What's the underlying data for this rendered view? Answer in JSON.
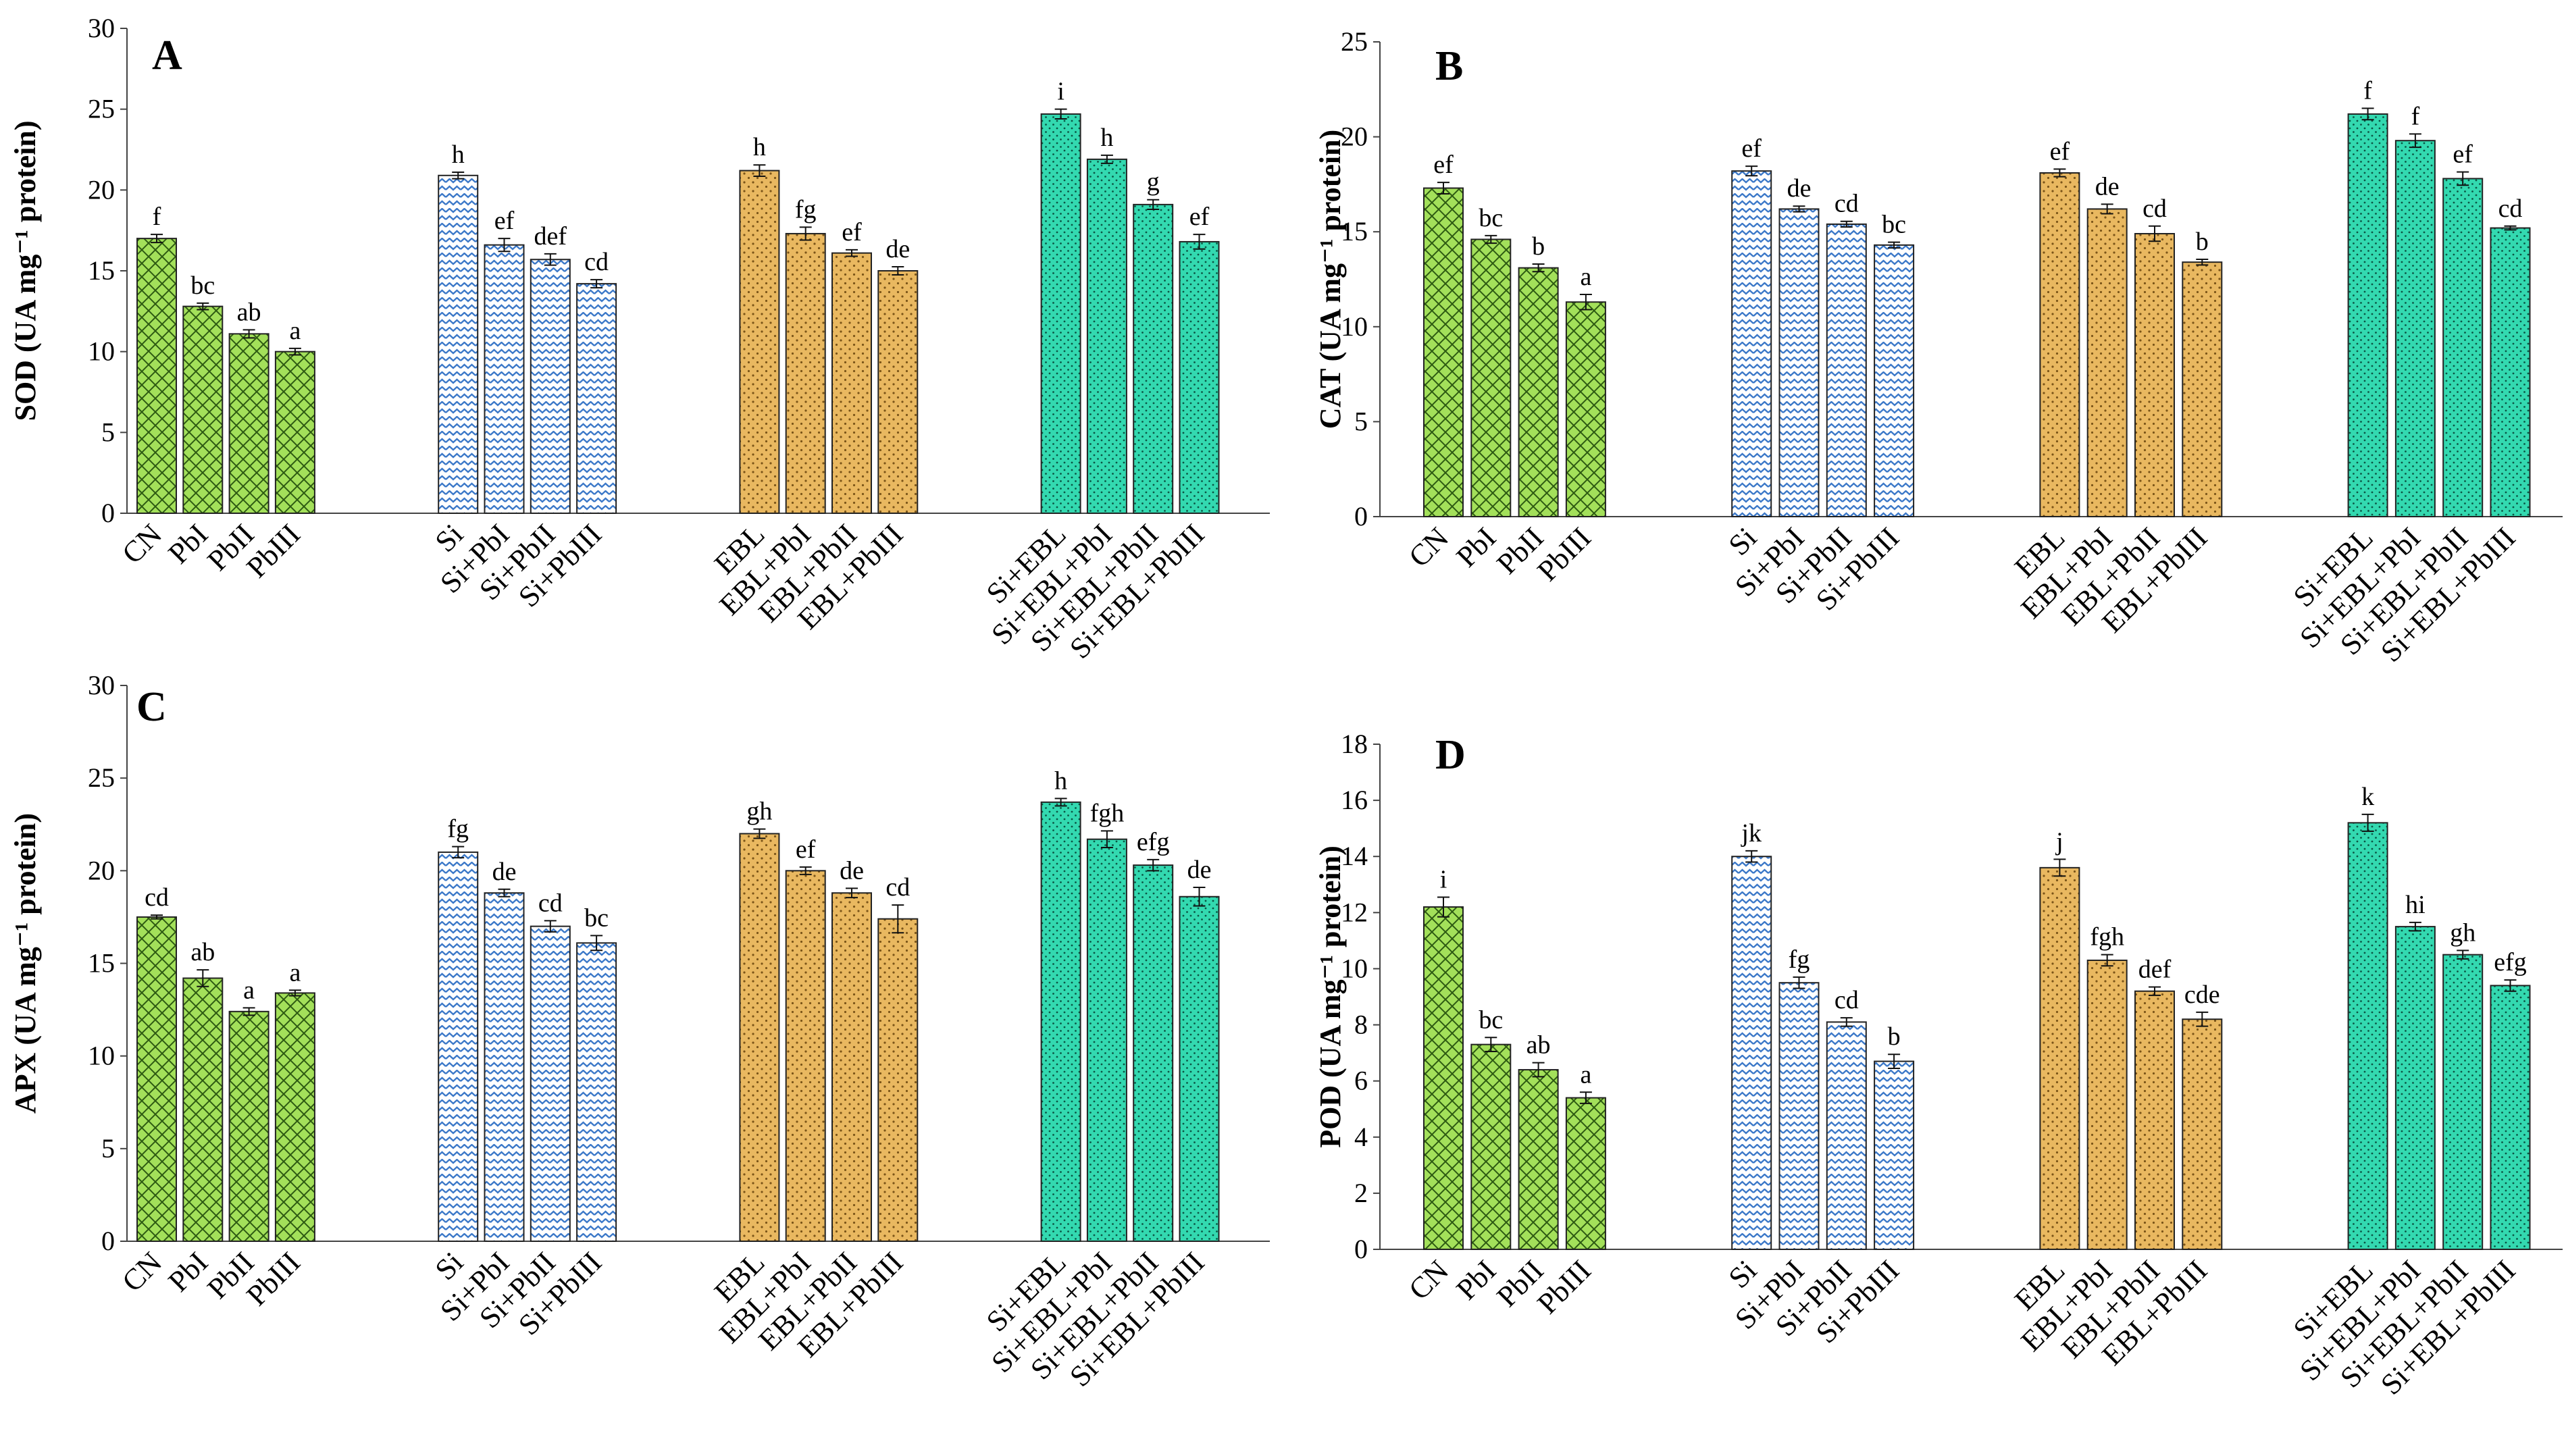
{
  "groups": [
    {
      "name": "control",
      "color": "#a3e05a",
      "pattern": "crosshatch"
    },
    {
      "name": "si",
      "color": "#7aa8de",
      "pattern": "zigzag"
    },
    {
      "name": "ebl",
      "color": "#e9b860",
      "pattern": "dots"
    },
    {
      "name": "si-ebl",
      "color": "#33d9b0",
      "pattern": "dense-dots"
    }
  ],
  "chart_data": [
    {
      "type": "bar",
      "panel": "A",
      "ylabel": "SOD (UA mg⁻¹ protein)",
      "ylim": [
        0,
        30
      ],
      "yticks": [
        "0",
        "5",
        "10",
        "15",
        "20",
        "25",
        "30"
      ],
      "categories": [
        "CN",
        "PbI",
        "PbII",
        "PbIII",
        "Si",
        "Si+PbI",
        "Si+PbII",
        "Si+PbIII",
        "EBL",
        "EBL+PbI",
        "EBL+PbII",
        "EBL+PbIII",
        "Si+EBL",
        "Si+EBL+PbI",
        "Si+EBL+PbII",
        "Si+EBL+PbIII"
      ],
      "values": [
        17.0,
        12.8,
        11.1,
        10.0,
        20.9,
        16.6,
        15.7,
        14.2,
        21.2,
        17.3,
        16.1,
        15.0,
        24.7,
        21.9,
        19.1,
        16.8
      ],
      "errors": [
        0.25,
        0.2,
        0.25,
        0.2,
        0.2,
        0.4,
        0.35,
        0.25,
        0.35,
        0.4,
        0.2,
        0.25,
        0.3,
        0.25,
        0.3,
        0.45
      ],
      "significance": [
        "f",
        "bc",
        "ab",
        "a",
        "h",
        "ef",
        "def",
        "cd",
        "h",
        "fg",
        "ef",
        "de",
        "i",
        "h",
        "g",
        "ef"
      ]
    },
    {
      "type": "bar",
      "panel": "B",
      "ylabel": "CAT (UA mg⁻¹ protein)",
      "ylim": [
        0,
        25
      ],
      "yticks": [
        "0",
        "5",
        "10",
        "15",
        "20",
        "25"
      ],
      "categories": [
        "CN",
        "PbI",
        "PbII",
        "PbIII",
        "Si",
        "Si+PbI",
        "Si+PbII",
        "Si+PbIII",
        "EBL",
        "EBL+PbI",
        "EBL+PbII",
        "EBL+PbIII",
        "Si+EBL",
        "Si+EBL+PbI",
        "Si+EBL+PbII",
        "Si+EBL+PbIII"
      ],
      "values": [
        17.3,
        14.6,
        13.1,
        11.3,
        18.2,
        16.2,
        15.4,
        14.3,
        18.1,
        16.2,
        14.9,
        13.4,
        21.2,
        19.8,
        17.8,
        15.2
      ],
      "errors": [
        0.3,
        0.2,
        0.2,
        0.4,
        0.25,
        0.15,
        0.15,
        0.15,
        0.2,
        0.25,
        0.4,
        0.15,
        0.3,
        0.35,
        0.35,
        0.1
      ],
      "significance": [
        "ef",
        "bc",
        "b",
        "a",
        "ef",
        "de",
        "cd",
        "bc",
        "ef",
        "de",
        "cd",
        "b",
        "f",
        "f",
        "ef",
        "cd"
      ]
    },
    {
      "type": "bar",
      "panel": "C",
      "ylabel": "APX (UA mg⁻¹ protein)",
      "ylim": [
        0,
        30
      ],
      "yticks": [
        "0",
        "5",
        "10",
        "15",
        "20",
        "25",
        "30"
      ],
      "categories": [
        "CN",
        "PbI",
        "PbII",
        "PbIII",
        "Si",
        "Si+PbI",
        "Si+PbII",
        "Si+PbIII",
        "EBL",
        "EBL+PbI",
        "EBL+PbII",
        "EBL+PbIII",
        "Si+EBL",
        "Si+EBL+PbI",
        "Si+EBL+PbII",
        "Si+EBL+PbIII"
      ],
      "values": [
        17.5,
        14.2,
        12.4,
        13.4,
        21.0,
        18.8,
        17.0,
        16.1,
        22.0,
        20.0,
        18.8,
        17.4,
        23.7,
        21.7,
        20.3,
        18.6
      ],
      "errors": [
        0.1,
        0.45,
        0.2,
        0.15,
        0.3,
        0.2,
        0.3,
        0.4,
        0.25,
        0.2,
        0.25,
        0.75,
        0.2,
        0.45,
        0.3,
        0.5
      ],
      "significance": [
        "cd",
        "ab",
        "a",
        "a",
        "fg",
        "de",
        "cd",
        "bc",
        "gh",
        "ef",
        "de",
        "cd",
        "h",
        "fgh",
        "efg",
        "de"
      ]
    },
    {
      "type": "bar",
      "panel": "D",
      "ylabel": "POD (UA mg⁻¹ protein)",
      "ylim": [
        0,
        18
      ],
      "yticks": [
        "0",
        "2",
        "4",
        "6",
        "8",
        "10",
        "12",
        "14",
        "16",
        "18"
      ],
      "categories": [
        "CN",
        "PbI",
        "PbII",
        "PbIII",
        "Si",
        "Si+PbI",
        "Si+PbII",
        "Si+PbIII",
        "EBL",
        "EBL+PbI",
        "EBL+PbII",
        "EBL+PbIII",
        "Si+EBL",
        "Si+EBL+PbI",
        "Si+EBL+PbII",
        "Si+EBL+PbIII"
      ],
      "values": [
        12.2,
        7.3,
        6.4,
        5.4,
        14.0,
        9.5,
        8.1,
        6.7,
        13.6,
        10.3,
        9.2,
        8.2,
        15.2,
        11.5,
        10.5,
        9.4
      ],
      "errors": [
        0.35,
        0.25,
        0.25,
        0.2,
        0.2,
        0.2,
        0.15,
        0.25,
        0.3,
        0.2,
        0.15,
        0.25,
        0.3,
        0.15,
        0.15,
        0.2
      ],
      "significance": [
        "i",
        "bc",
        "ab",
        "a",
        "jk",
        "fg",
        "cd",
        "b",
        "j",
        "fgh",
        "def",
        "cde",
        "k",
        "hi",
        "gh",
        "efg"
      ]
    }
  ]
}
